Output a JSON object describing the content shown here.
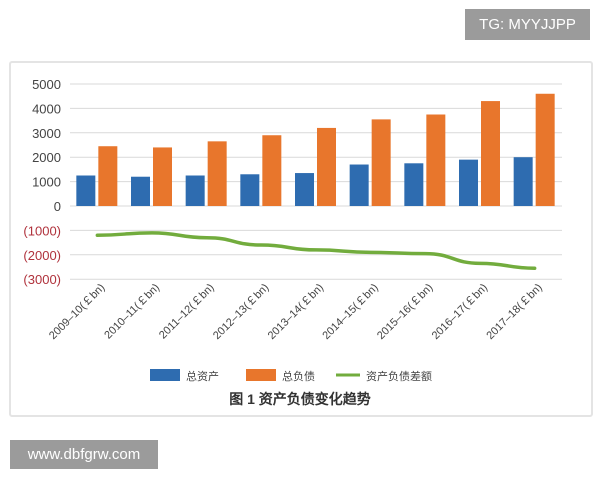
{
  "watermark_top": "TG: MYYJJPP",
  "watermark_bottom": "www.dbfgrw.com",
  "chart_data": {
    "type": "bar",
    "title": "图 1 资产负债变化趋势",
    "categories": [
      "2009–10(￡bn)",
      "2010–11(￡bn)",
      "2011–12(￡bn)",
      "2012–13(￡bn)",
      "2013–14(￡bn)",
      "2014–15(￡bn)",
      "2015–16(￡bn)",
      "2016–17(￡bn)",
      "2017–18(￡bn)"
    ],
    "series": [
      {
        "name": "总资产",
        "type": "bar",
        "color": "#2e6cb0",
        "values": [
          1250,
          1200,
          1250,
          1300,
          1350,
          1700,
          1750,
          1900,
          2000
        ]
      },
      {
        "name": "总负债",
        "type": "bar",
        "color": "#e8762c",
        "values": [
          2450,
          2400,
          2650,
          2900,
          3200,
          3550,
          3750,
          4300,
          4600
        ]
      },
      {
        "name": "资产负债差额",
        "type": "line",
        "color": "#72ac3d",
        "values": [
          -1200,
          -1100,
          -1300,
          -1600,
          -1800,
          -1900,
          -1950,
          -2350,
          -2550
        ]
      }
    ],
    "yticks": [
      5000,
      4000,
      3000,
      2000,
      1000,
      0,
      -1000,
      -2000,
      -3000
    ],
    "ytick_labels": [
      "5000",
      "4000",
      "3000",
      "2000",
      "1000",
      "0",
      "(1000)",
      "(2000)",
      "(3000)"
    ],
    "negative_tick_color": "#b0323c",
    "ylim": [
      -3000,
      5000
    ],
    "grid": true,
    "legend": "bottom"
  }
}
